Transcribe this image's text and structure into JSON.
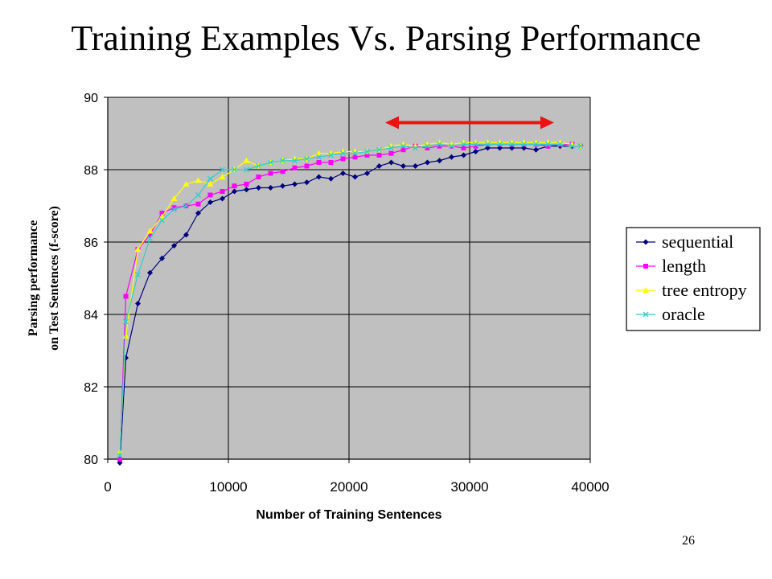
{
  "slide": {
    "title": "Training Examples Vs. Parsing Performance",
    "page_number": "26"
  },
  "chart_data": {
    "type": "line",
    "title": "",
    "xlabel": "Number of Training Sentences",
    "ylabel_lines": [
      "Parsing performance",
      "on Test Sentences (f-score)"
    ],
    "xlim": [
      0,
      40000
    ],
    "ylim": [
      80,
      90
    ],
    "x_ticks": [
      "0",
      "10000",
      "20000",
      "30000",
      "40000"
    ],
    "y_ticks": [
      "80",
      "82",
      "84",
      "86",
      "88",
      "90"
    ],
    "x_tick_values": [
      0,
      10000,
      20000,
      30000,
      40000
    ],
    "y_tick_values": [
      80,
      82,
      84,
      86,
      88,
      90
    ],
    "grid": true,
    "plot_background": "#c0c0c0",
    "legend_position": "right",
    "annotation": {
      "type": "double-arrow",
      "from_x": 23000,
      "to_x": 37000,
      "y": 89.3,
      "color": "#ee1111"
    },
    "series": [
      {
        "name": "sequential",
        "color": "#000080",
        "marker": "diamond",
        "x": [
          1000,
          1500,
          2500,
          3500,
          4500,
          5500,
          6500,
          7500,
          8500,
          9500,
          10500,
          11500,
          12500,
          13500,
          14500,
          15500,
          16500,
          17500,
          18500,
          19500,
          20500,
          21500,
          22500,
          23500,
          24500,
          25500,
          26500,
          27500,
          28500,
          29500,
          30500,
          31500,
          32500,
          33500,
          34500,
          35500,
          36500,
          37500,
          38500,
          39200
        ],
        "values": [
          79.9,
          82.8,
          84.3,
          85.15,
          85.55,
          85.9,
          86.2,
          86.8,
          87.1,
          87.2,
          87.4,
          87.45,
          87.5,
          87.5,
          87.55,
          87.6,
          87.65,
          87.8,
          87.75,
          87.9,
          87.8,
          87.9,
          88.1,
          88.2,
          88.1,
          88.1,
          88.2,
          88.25,
          88.35,
          88.4,
          88.5,
          88.6,
          88.6,
          88.6,
          88.6,
          88.55,
          88.65,
          88.65,
          88.65,
          88.65
        ]
      },
      {
        "name": "length",
        "color": "#ff00ff",
        "marker": "square",
        "x": [
          1000,
          1500,
          2500,
          3500,
          4500,
          5500,
          6500,
          7500,
          8500,
          9500,
          10500,
          11500,
          12500,
          13500,
          14500,
          15500,
          16500,
          17500,
          18500,
          19500,
          20500,
          21500,
          22500,
          23500,
          24500,
          25500,
          26500,
          27500,
          28500,
          29500,
          30500,
          31500,
          32500,
          33500,
          34500,
          35500,
          36500,
          37500,
          38500,
          39200
        ],
        "values": [
          80.0,
          84.5,
          85.8,
          86.2,
          86.8,
          86.95,
          87.0,
          87.05,
          87.3,
          87.4,
          87.55,
          87.6,
          87.8,
          87.9,
          87.95,
          88.05,
          88.1,
          88.2,
          88.2,
          88.3,
          88.35,
          88.4,
          88.4,
          88.45,
          88.55,
          88.65,
          88.6,
          88.65,
          88.65,
          88.6,
          88.65,
          88.7,
          88.7,
          88.7,
          88.7,
          88.7,
          88.65,
          88.7,
          88.7,
          88.65
        ]
      },
      {
        "name": "tree entropy",
        "color": "#ffff00",
        "marker": "triangle",
        "x": [
          1000,
          1500,
          2500,
          3500,
          4500,
          5500,
          6500,
          7500,
          8500,
          9500,
          10500,
          11500,
          12500,
          13500,
          14500,
          15500,
          16500,
          17500,
          18500,
          19500,
          20500,
          21500,
          22500,
          23500,
          24500,
          25500,
          26500,
          27500,
          28500,
          29500,
          30500,
          31500,
          32500,
          33500,
          34500,
          35500,
          36500,
          37500,
          38500,
          39200
        ],
        "values": [
          80.2,
          83.4,
          85.8,
          86.3,
          86.7,
          87.2,
          87.6,
          87.7,
          87.6,
          87.8,
          88.0,
          88.25,
          88.1,
          88.2,
          88.25,
          88.3,
          88.3,
          88.45,
          88.45,
          88.5,
          88.5,
          88.5,
          88.55,
          88.65,
          88.7,
          88.65,
          88.7,
          88.75,
          88.7,
          88.75,
          88.75,
          88.75,
          88.75,
          88.75,
          88.75,
          88.75,
          88.75,
          88.75,
          88.7,
          88.65
        ]
      },
      {
        "name": "oracle",
        "color": "#33cccc",
        "marker": "x",
        "x": [
          1000,
          1500,
          2500,
          3500,
          4500,
          5500,
          6500,
          7500,
          8500,
          9500,
          10500,
          11500,
          12500,
          13500,
          14500,
          15500,
          16500,
          17500,
          18500,
          19500,
          20500,
          21500,
          22500,
          23500,
          24500,
          25500,
          26500,
          27500,
          28500,
          29500,
          30500,
          31500,
          32500,
          33500,
          34500,
          35500,
          36500,
          37500,
          38500,
          39200
        ],
        "values": [
          80.1,
          83.8,
          85.1,
          86.1,
          86.6,
          86.9,
          87.0,
          87.3,
          87.75,
          88.0,
          88.0,
          88.0,
          88.1,
          88.2,
          88.25,
          88.25,
          88.3,
          88.35,
          88.4,
          88.45,
          88.45,
          88.5,
          88.55,
          88.6,
          88.65,
          88.6,
          88.65,
          88.7,
          88.65,
          88.7,
          88.7,
          88.7,
          88.7,
          88.7,
          88.7,
          88.7,
          88.7,
          88.7,
          88.65,
          88.65
        ]
      }
    ]
  }
}
